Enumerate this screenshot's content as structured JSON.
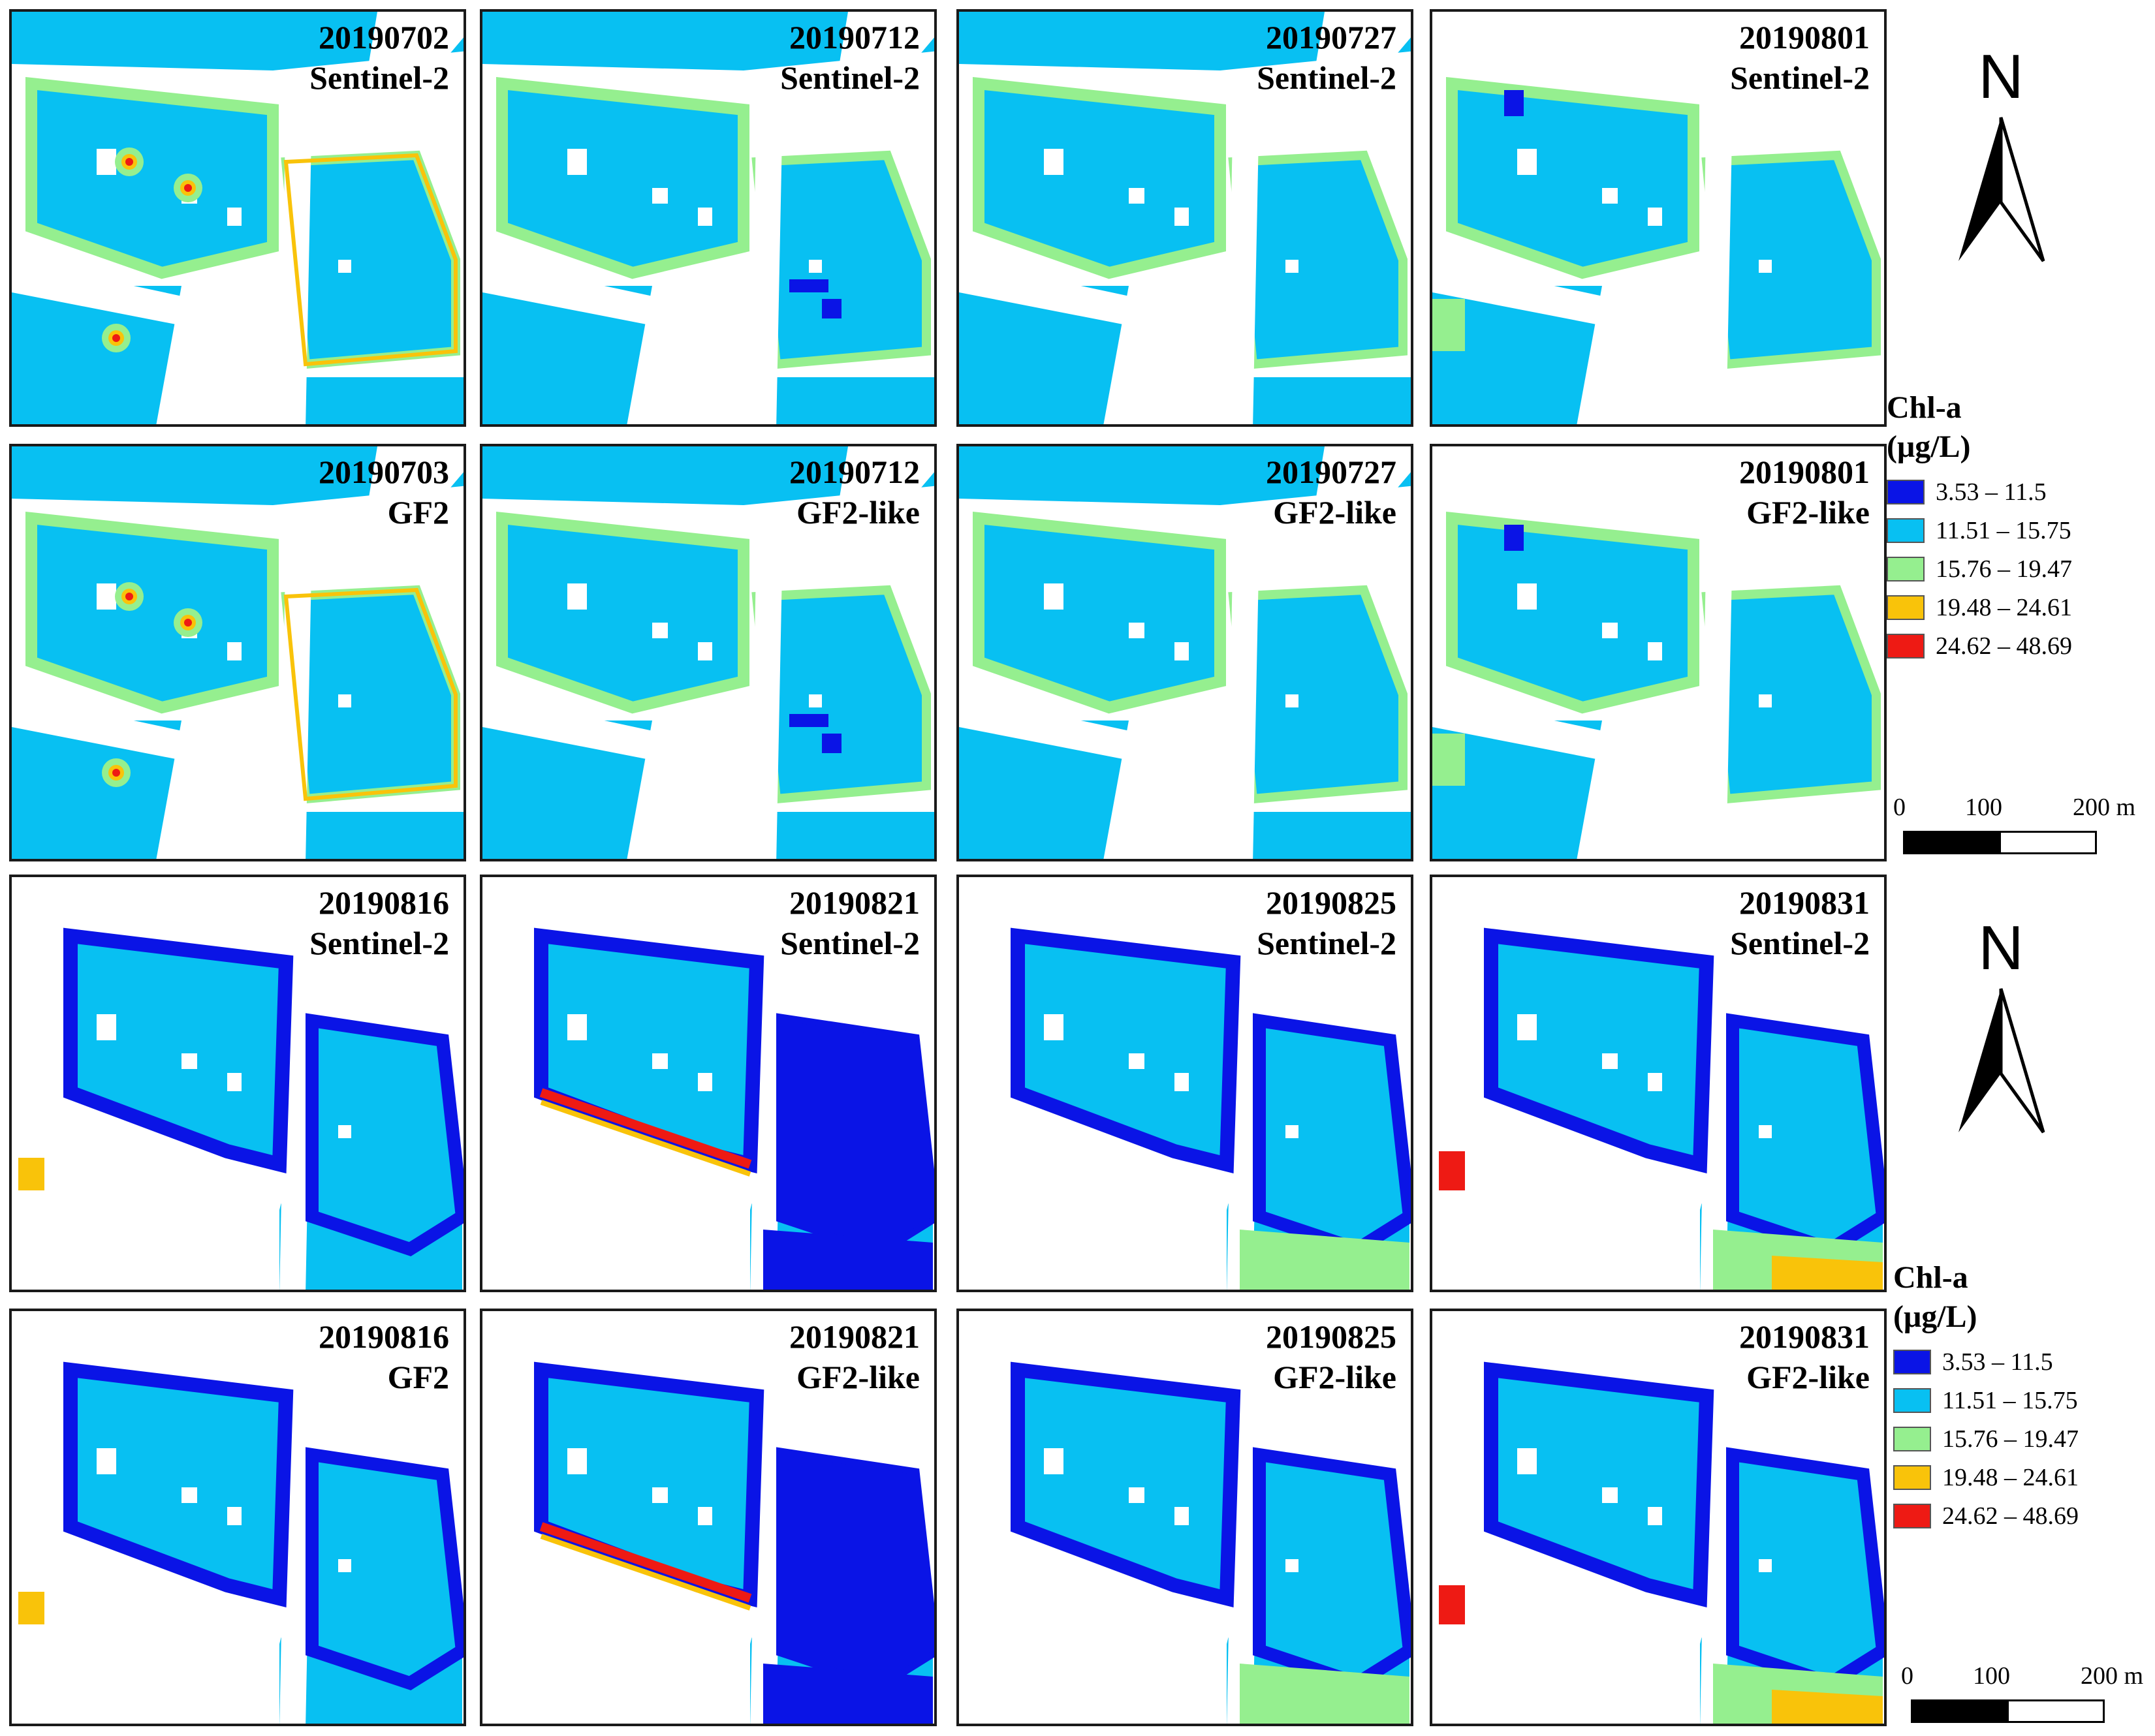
{
  "panels": [
    {
      "date": "20190702",
      "sensor": "Sentinel-2"
    },
    {
      "date": "20190712",
      "sensor": "Sentinel-2"
    },
    {
      "date": "20190727",
      "sensor": "Sentinel-2"
    },
    {
      "date": "20190801",
      "sensor": "Sentinel-2"
    },
    {
      "date": "20190703",
      "sensor": "GF2"
    },
    {
      "date": "20190712",
      "sensor": "GF2-like"
    },
    {
      "date": "20190727",
      "sensor": "GF2-like"
    },
    {
      "date": "20190801",
      "sensor": "GF2-like"
    },
    {
      "date": "20190816",
      "sensor": "Sentinel-2"
    },
    {
      "date": "20190821",
      "sensor": "Sentinel-2"
    },
    {
      "date": "20190825",
      "sensor": "Sentinel-2"
    },
    {
      "date": "20190831",
      "sensor": "Sentinel-2"
    },
    {
      "date": "20190816",
      "sensor": "GF2"
    },
    {
      "date": "20190821",
      "sensor": "GF2-like"
    },
    {
      "date": "20190825",
      "sensor": "GF2-like"
    },
    {
      "date": "20190831",
      "sensor": "GF2-like"
    }
  ],
  "north_arrow": {
    "letter": "N"
  },
  "legend": {
    "title_line1": "Chl-a",
    "title_line2": "(μg/L)",
    "classes": [
      {
        "label": "3.53 – 11.5",
        "color": "#0a14e6"
      },
      {
        "label": "11.51 – 15.75",
        "color": "#08c0f2"
      },
      {
        "label": "15.76 – 19.47",
        "color": "#95ef8f"
      },
      {
        "label": "19.48 – 24.61",
        "color": "#f9c30a"
      },
      {
        "label": "24.62 – 48.69",
        "color": "#ee1a14"
      }
    ]
  },
  "scalebar": {
    "label0": "0",
    "label1": "100",
    "label2": "200 m"
  }
}
